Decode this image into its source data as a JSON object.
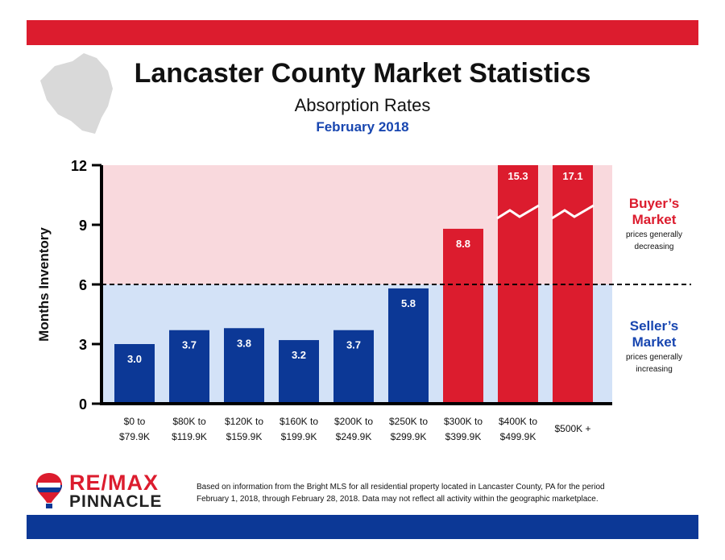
{
  "header": {
    "title": "Lancaster County Market Statistics",
    "subtitle": "Absorption Rates",
    "date": "February 2018"
  },
  "colors": {
    "accent_red": "#dc1c2e",
    "accent_blue": "#0c3896",
    "buyer_zone": "#f9d9dd",
    "seller_zone": "#d3e2f7"
  },
  "chart_data": {
    "type": "bar",
    "title": "",
    "xlabel": "",
    "ylabel": "Months Inventory",
    "ylim": [
      0,
      12
    ],
    "yticks": [
      "0",
      "3",
      "6",
      "9",
      "12"
    ],
    "threshold": 6,
    "categories": [
      "$0 to $79.9K",
      "$80K to $119.9K",
      "$120K to $159.9K",
      "$160K to $199.9K",
      "$200K to $249.9K",
      "$250K to $299.9K",
      "$300K to $399.9K",
      "$400K to $499.9K",
      "$500K +"
    ],
    "values": [
      3.0,
      3.7,
      3.8,
      3.2,
      3.7,
      5.8,
      8.8,
      15.3,
      17.1
    ],
    "value_labels": [
      "3.0",
      "3.7",
      "3.8",
      "3.2",
      "3.7",
      "5.8",
      "8.8",
      "15.3",
      "17.1"
    ],
    "bar_colors": [
      "#0c3896",
      "#0c3896",
      "#0c3896",
      "#0c3896",
      "#0c3896",
      "#0c3896",
      "#dc1c2e",
      "#dc1c2e",
      "#dc1c2e"
    ],
    "broken_axis_bars": [
      7,
      8
    ],
    "grid": false
  },
  "zones": {
    "buyers": {
      "title_line1": "Buyer’s",
      "title_line2": "Market",
      "note_line1": "prices generally",
      "note_line2": "decreasing"
    },
    "sellers": {
      "title_line1": "Seller’s",
      "title_line2": "Market",
      "note_line1": "prices generally",
      "note_line2": "increasing"
    }
  },
  "logo": {
    "re": "RE/",
    "max": "MAX",
    "pinnacle": "PINNACLE"
  },
  "footnote": {
    "line1": "Based on information from the Bright MLS for all residential property located in Lancaster County, PA for the period",
    "line2": "February 1, 2018, through February 28, 2018.  Data may not reflect all activity within the geographic marketplace."
  }
}
